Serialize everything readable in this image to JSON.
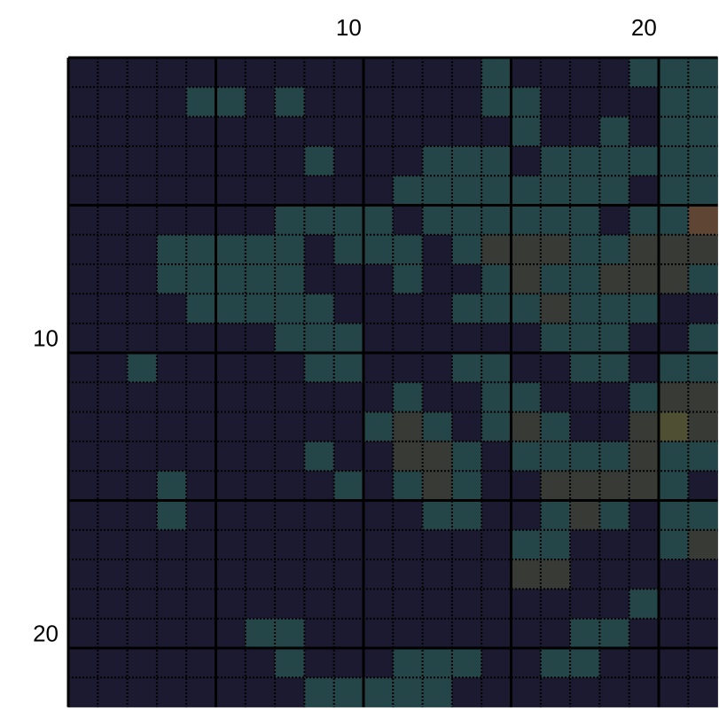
{
  "chart_data": {
    "type": "heatmap",
    "title": "",
    "xlabel": "",
    "ylabel": "",
    "x_tick_labels": [
      {
        "pos": 10,
        "label": "10"
      },
      {
        "pos": 20,
        "label": "20"
      }
    ],
    "y_tick_labels": [
      {
        "pos": 10,
        "label": "10"
      },
      {
        "pos": 20,
        "label": "20"
      }
    ],
    "x_range": [
      1,
      22
    ],
    "y_range": [
      1,
      22
    ],
    "major_grid_every": 5,
    "levels": {
      "0": "#1c1a31",
      "1": "#254648",
      "2": "#383a35",
      "3": "#4e4f33",
      "4": "#5f4634"
    },
    "matrix": [
      [
        0,
        0,
        0,
        0,
        0,
        0,
        0,
        0,
        0,
        0,
        0,
        0,
        0,
        0,
        1,
        0,
        0,
        0,
        0,
        1,
        1,
        1
      ],
      [
        0,
        0,
        0,
        0,
        1,
        1,
        0,
        1,
        0,
        0,
        0,
        0,
        0,
        0,
        1,
        1,
        0,
        0,
        0,
        0,
        1,
        1
      ],
      [
        0,
        0,
        0,
        0,
        0,
        0,
        0,
        0,
        0,
        0,
        0,
        0,
        0,
        0,
        0,
        1,
        0,
        0,
        1,
        0,
        1,
        1
      ],
      [
        0,
        0,
        0,
        0,
        0,
        0,
        0,
        0,
        1,
        0,
        0,
        0,
        1,
        1,
        1,
        0,
        1,
        1,
        1,
        1,
        1,
        1
      ],
      [
        0,
        0,
        0,
        0,
        0,
        0,
        0,
        0,
        0,
        0,
        0,
        1,
        1,
        1,
        1,
        1,
        1,
        1,
        1,
        0,
        1,
        1
      ],
      [
        0,
        0,
        0,
        0,
        0,
        0,
        0,
        1,
        1,
        1,
        1,
        0,
        1,
        1,
        1,
        1,
        1,
        1,
        0,
        1,
        1,
        4
      ],
      [
        0,
        0,
        0,
        1,
        1,
        1,
        1,
        1,
        0,
        1,
        1,
        1,
        0,
        1,
        2,
        2,
        2,
        1,
        1,
        2,
        2,
        2
      ],
      [
        0,
        0,
        0,
        1,
        1,
        1,
        1,
        1,
        0,
        0,
        0,
        1,
        0,
        0,
        1,
        2,
        1,
        1,
        2,
        2,
        2,
        1
      ],
      [
        0,
        0,
        0,
        0,
        1,
        1,
        1,
        1,
        1,
        0,
        0,
        0,
        0,
        1,
        1,
        1,
        2,
        1,
        1,
        1,
        0,
        0
      ],
      [
        0,
        0,
        0,
        0,
        0,
        0,
        0,
        1,
        1,
        1,
        0,
        0,
        0,
        0,
        0,
        0,
        1,
        1,
        1,
        0,
        0,
        1
      ],
      [
        0,
        0,
        1,
        0,
        0,
        0,
        0,
        0,
        1,
        1,
        0,
        0,
        0,
        1,
        1,
        0,
        0,
        1,
        1,
        0,
        1,
        1
      ],
      [
        0,
        0,
        0,
        0,
        0,
        0,
        0,
        0,
        0,
        0,
        0,
        1,
        0,
        0,
        1,
        1,
        0,
        0,
        0,
        1,
        2,
        2
      ],
      [
        0,
        0,
        0,
        0,
        0,
        0,
        0,
        0,
        0,
        0,
        1,
        2,
        1,
        0,
        1,
        2,
        1,
        0,
        0,
        2,
        3,
        2
      ],
      [
        0,
        0,
        0,
        0,
        0,
        0,
        0,
        0,
        1,
        0,
        0,
        2,
        2,
        1,
        0,
        1,
        1,
        1,
        1,
        2,
        1,
        1
      ],
      [
        0,
        0,
        0,
        1,
        0,
        0,
        0,
        0,
        0,
        1,
        0,
        1,
        2,
        1,
        0,
        0,
        2,
        2,
        2,
        2,
        1,
        0
      ],
      [
        0,
        0,
        0,
        1,
        0,
        0,
        0,
        0,
        0,
        0,
        0,
        0,
        1,
        1,
        0,
        0,
        1,
        2,
        1,
        0,
        1,
        1
      ],
      [
        0,
        0,
        0,
        0,
        0,
        0,
        0,
        0,
        0,
        0,
        0,
        0,
        0,
        0,
        0,
        1,
        1,
        0,
        0,
        0,
        1,
        2
      ],
      [
        0,
        0,
        0,
        0,
        0,
        0,
        0,
        0,
        0,
        0,
        0,
        0,
        0,
        0,
        0,
        2,
        2,
        0,
        0,
        0,
        0,
        0
      ],
      [
        0,
        0,
        0,
        0,
        0,
        0,
        0,
        0,
        0,
        0,
        0,
        0,
        0,
        0,
        0,
        0,
        0,
        0,
        0,
        1,
        0,
        0
      ],
      [
        0,
        0,
        0,
        0,
        0,
        0,
        1,
        1,
        0,
        0,
        0,
        0,
        0,
        0,
        0,
        0,
        0,
        1,
        1,
        0,
        0,
        0
      ],
      [
        0,
        0,
        0,
        0,
        0,
        0,
        0,
        1,
        0,
        0,
        0,
        1,
        1,
        1,
        0,
        0,
        1,
        1,
        0,
        0,
        0,
        0
      ],
      [
        0,
        0,
        0,
        0,
        0,
        0,
        0,
        0,
        1,
        1,
        1,
        1,
        1,
        0,
        0,
        0,
        0,
        0,
        0,
        0,
        0,
        0
      ]
    ]
  }
}
